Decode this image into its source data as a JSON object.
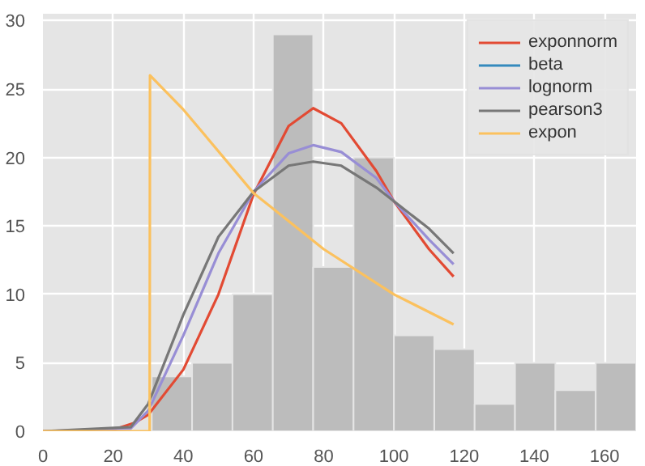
{
  "chart_data": {
    "type": "histogram",
    "bins": [
      31,
      42.5,
      54,
      65.5,
      77,
      88.5,
      100,
      111.5,
      123,
      134.5,
      146,
      157.5,
      169
    ],
    "values": [
      4,
      5,
      10,
      29,
      12,
      20,
      7,
      6,
      2,
      5,
      3,
      5
    ],
    "color": "#bcbcbc",
    "xlim": [
      0,
      169
    ],
    "ylim": [
      0,
      30.5
    ],
    "xticks": [
      0,
      20,
      40,
      60,
      80,
      100,
      120,
      140,
      160
    ],
    "yticks": [
      0,
      5,
      10,
      15,
      20,
      25,
      30
    ],
    "grid": true,
    "legend": "top right",
    "series": [
      {
        "name": "exponnorm",
        "type": "line",
        "color": "#e24a33",
        "x": [
          0,
          20,
          26,
          30,
          40,
          50,
          60,
          70,
          77,
          85,
          95,
          100,
          110,
          117
        ],
        "values": [
          0,
          0.1,
          0.6,
          1.2,
          4.5,
          10,
          17.3,
          22.3,
          23.6,
          22.5,
          19,
          16.8,
          13.3,
          11.3
        ]
      },
      {
        "name": "beta",
        "type": "line",
        "color": "#348abd"
      },
      {
        "name": "lognorm",
        "type": "line",
        "color": "#988ed5",
        "x": [
          0,
          25,
          30,
          40,
          50,
          60,
          70,
          77,
          85,
          95,
          100,
          110,
          117
        ],
        "values": [
          0,
          0.2,
          1.5,
          7,
          13,
          17.5,
          20.3,
          20.9,
          20.4,
          18.5,
          16.8,
          14,
          12.2
        ]
      },
      {
        "name": "pearson3",
        "type": "line",
        "color": "#777777",
        "x": [
          0,
          25,
          30,
          40,
          50,
          60,
          70,
          77,
          85,
          95,
          100,
          110,
          117
        ],
        "values": [
          0,
          0.3,
          2,
          8.5,
          14.2,
          17.5,
          19.4,
          19.7,
          19.4,
          17.8,
          16.8,
          14.8,
          13
        ]
      },
      {
        "name": "expon",
        "type": "line",
        "color": "#fbc15e",
        "x": [
          0,
          30.4,
          30.5,
          40,
          60,
          80,
          100,
          117
        ],
        "values": [
          0,
          0,
          26,
          23.5,
          17.4,
          13.3,
          10,
          7.8
        ]
      }
    ]
  }
}
